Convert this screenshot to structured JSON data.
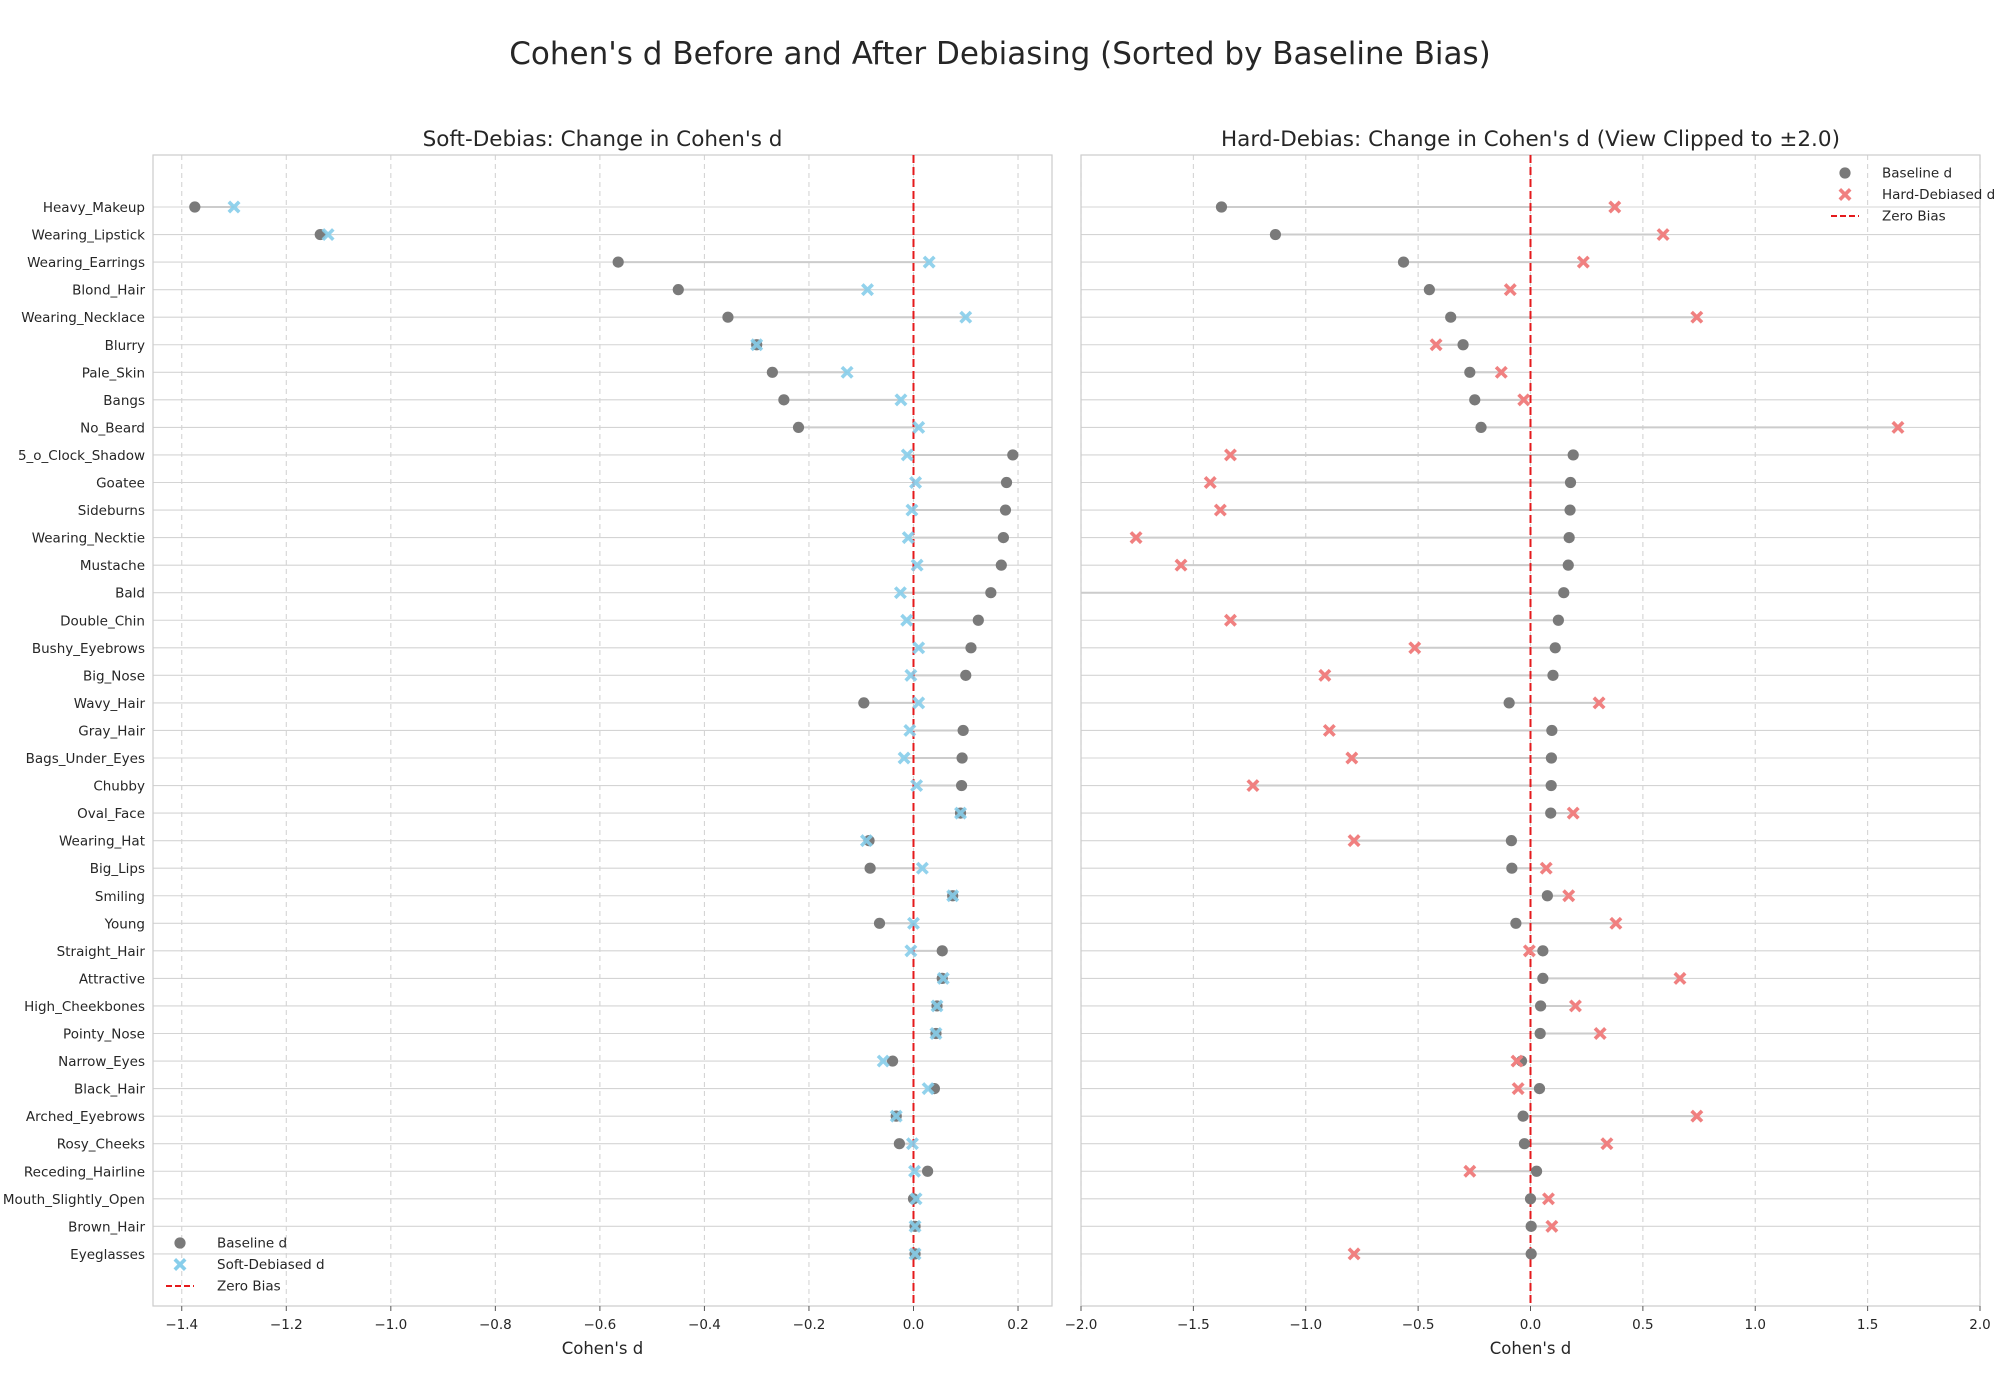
{
  "title": "Cohen's d Before and After Debiasing (Sorted by Baseline Bias)",
  "colors": {
    "baseline": "#7a7a7a",
    "soft": "#87ceeb",
    "hard": "#f08080",
    "zero_line": "#e41a1c",
    "grid": "#d4d4d4",
    "connector": "#cccccc",
    "frame": "#cccccc"
  },
  "chart_data": [
    {
      "type": "scatter",
      "title": "Soft-Debias: Change in Cohen's d",
      "xlabel": "Cohen's d",
      "ylabel": "",
      "xlim": [
        -1.455,
        0.265
      ],
      "xticks": [
        -1.4,
        -1.2,
        -1.0,
        -0.8,
        -0.6,
        -0.4,
        -0.2,
        0.0,
        0.2
      ],
      "xtick_labels": [
        "−1.4",
        "−1.2",
        "−1.0",
        "−0.8",
        "−0.6",
        "−0.4",
        "−0.2",
        "0.0",
        "0.2"
      ],
      "grid": true,
      "zero_line": true,
      "legend_position": "lower-left",
      "legend": [
        "Baseline d",
        "Soft-Debiased d",
        "Zero Bias"
      ],
      "categories": [
        "Heavy_Makeup",
        "Wearing_Lipstick",
        "Wearing_Earrings",
        "Blond_Hair",
        "Wearing_Necklace",
        "Blurry",
        "Pale_Skin",
        "Bangs",
        "No_Beard",
        "5_o_Clock_Shadow",
        "Goatee",
        "Sideburns",
        "Wearing_Necktie",
        "Mustache",
        "Bald",
        "Double_Chin",
        "Bushy_Eyebrows",
        "Big_Nose",
        "Wavy_Hair",
        "Gray_Hair",
        "Bags_Under_Eyes",
        "Chubby",
        "Oval_Face",
        "Wearing_Hat",
        "Big_Lips",
        "Smiling",
        "Young",
        "Straight_Hair",
        "Attractive",
        "High_Cheekbones",
        "Pointy_Nose",
        "Narrow_Eyes",
        "Black_Hair",
        "Arched_Eyebrows",
        "Rosy_Cheeks",
        "Receding_Hairline",
        "Mouth_Slightly_Open",
        "Brown_Hair",
        "Eyeglasses"
      ],
      "series": [
        {
          "name": "Baseline d",
          "marker": "circle",
          "values": [
            -1.375,
            -1.135,
            -0.565,
            -0.45,
            -0.355,
            -0.3,
            -0.27,
            -0.248,
            -0.22,
            0.19,
            0.178,
            0.176,
            0.172,
            0.168,
            0.148,
            0.124,
            0.11,
            0.1,
            -0.095,
            0.095,
            0.093,
            0.092,
            0.09,
            -0.085,
            -0.083,
            0.075,
            -0.065,
            0.055,
            0.055,
            0.045,
            0.043,
            -0.04,
            0.04,
            -0.033,
            -0.027,
            0.027,
            0.0,
            0.003,
            0.003
          ]
        },
        {
          "name": "Soft-Debiased d",
          "marker": "x",
          "values": [
            -1.3,
            -1.12,
            0.03,
            -0.088,
            0.1,
            -0.3,
            -0.127,
            -0.024,
            0.01,
            -0.012,
            0.004,
            -0.003,
            -0.01,
            0.007,
            -0.025,
            -0.013,
            0.01,
            -0.005,
            0.01,
            -0.007,
            -0.018,
            0.006,
            0.09,
            -0.09,
            0.017,
            0.075,
            0.0,
            -0.005,
            0.057,
            0.045,
            0.043,
            -0.058,
            0.028,
            -0.033,
            -0.002,
            0.002,
            0.005,
            0.003,
            0.003
          ]
        }
      ]
    },
    {
      "type": "scatter",
      "title": "Hard-Debias: Change in Cohen's d (View Clipped to ±2.0)",
      "xlabel": "Cohen's d",
      "ylabel": "",
      "xlim": [
        -2.0,
        2.0
      ],
      "xticks": [
        -2.0,
        -1.5,
        -1.0,
        -0.5,
        0.0,
        0.5,
        1.0,
        1.5,
        2.0
      ],
      "xtick_labels": [
        "−2.0",
        "−1.5",
        "−1.0",
        "−0.5",
        "0.0",
        "0.5",
        "1.0",
        "1.5",
        "2.0"
      ],
      "grid": true,
      "zero_line": true,
      "legend_position": "upper-right",
      "legend": [
        "Baseline d",
        "Hard-Debiased d",
        "Zero Bias"
      ],
      "categories": [
        "Heavy_Makeup",
        "Wearing_Lipstick",
        "Wearing_Earrings",
        "Blond_Hair",
        "Wearing_Necklace",
        "Blurry",
        "Pale_Skin",
        "Bangs",
        "No_Beard",
        "5_o_Clock_Shadow",
        "Goatee",
        "Sideburns",
        "Wearing_Necktie",
        "Mustache",
        "Bald",
        "Double_Chin",
        "Bushy_Eyebrows",
        "Big_Nose",
        "Wavy_Hair",
        "Gray_Hair",
        "Bags_Under_Eyes",
        "Chubby",
        "Oval_Face",
        "Wearing_Hat",
        "Big_Lips",
        "Smiling",
        "Young",
        "Straight_Hair",
        "Attractive",
        "High_Cheekbones",
        "Pointy_Nose",
        "Narrow_Eyes",
        "Black_Hair",
        "Arched_Eyebrows",
        "Rosy_Cheeks",
        "Receding_Hairline",
        "Mouth_Slightly_Open",
        "Brown_Hair",
        "Eyeglasses"
      ],
      "series": [
        {
          "name": "Baseline d",
          "marker": "circle",
          "values": [
            -1.375,
            -1.135,
            -0.565,
            -0.45,
            -0.355,
            -0.3,
            -0.27,
            -0.248,
            -0.22,
            0.19,
            0.178,
            0.176,
            0.172,
            0.168,
            0.148,
            0.124,
            0.11,
            0.1,
            -0.095,
            0.095,
            0.093,
            0.092,
            0.09,
            -0.085,
            -0.083,
            0.075,
            -0.065,
            0.055,
            0.055,
            0.045,
            0.043,
            -0.04,
            0.04,
            -0.033,
            -0.027,
            0.027,
            0.0,
            0.003,
            0.003
          ]
        },
        {
          "name": "Hard-Debiased d",
          "marker": "x",
          "values": [
            0.375,
            0.59,
            0.235,
            -0.09,
            0.74,
            -0.42,
            -0.13,
            -0.03,
            1.635,
            -1.335,
            -1.425,
            -1.38,
            -1.755,
            -1.555,
            null,
            -1.335,
            -0.515,
            -0.915,
            0.305,
            -0.895,
            -0.795,
            -1.235,
            0.19,
            -0.785,
            0.07,
            0.17,
            0.38,
            -0.005,
            0.665,
            0.2,
            0.31,
            -0.06,
            -0.055,
            0.74,
            0.34,
            -0.27,
            0.08,
            0.095,
            -0.785
          ]
        }
      ]
    }
  ]
}
